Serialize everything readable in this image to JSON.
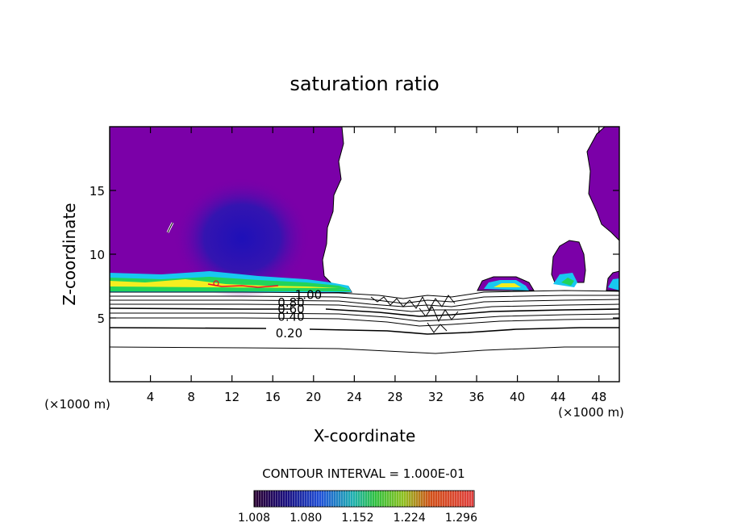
{
  "chart_data": {
    "type": "contour",
    "title": "saturation ratio",
    "xlabel": "X-coordinate",
    "ylabel": "Z-coordinate",
    "x_unit": "(×1000 m)",
    "x_unit_bottom": "(×1000 m)",
    "xlim": [
      0,
      50
    ],
    "ylim": [
      0,
      20
    ],
    "x_ticks": [
      4,
      8,
      12,
      16,
      20,
      24,
      28,
      32,
      36,
      40,
      44,
      48
    ],
    "y_ticks": [
      5,
      10,
      15
    ],
    "contour_labels": [
      {
        "text": "1.00",
        "x": 19.5,
        "z": 6.8
      },
      {
        "text": "0.80",
        "x": 17.8,
        "z": 6.2
      },
      {
        "text": "0.60",
        "x": 17.8,
        "z": 5.7
      },
      {
        "text": "0.40",
        "x": 17.8,
        "z": 5.1
      },
      {
        "text": "0.20",
        "x": 17.6,
        "z": 3.8
      }
    ],
    "contour_interval_text": "CONTOUR INTERVAL = 1.000E-01",
    "colorbar": {
      "labels": [
        "1.008",
        "1.080",
        "1.152",
        "1.224",
        "1.296"
      ],
      "min": 1.008,
      "max": 1.314
    },
    "colors": {
      "background_fill": "#7b00a8",
      "inner_blue": "#2a0fb5",
      "band_green": "#22d45a",
      "band_yellow": "#f4ee20",
      "band_cyan": "#18c8f0",
      "band_red": "#e8102a"
    }
  }
}
